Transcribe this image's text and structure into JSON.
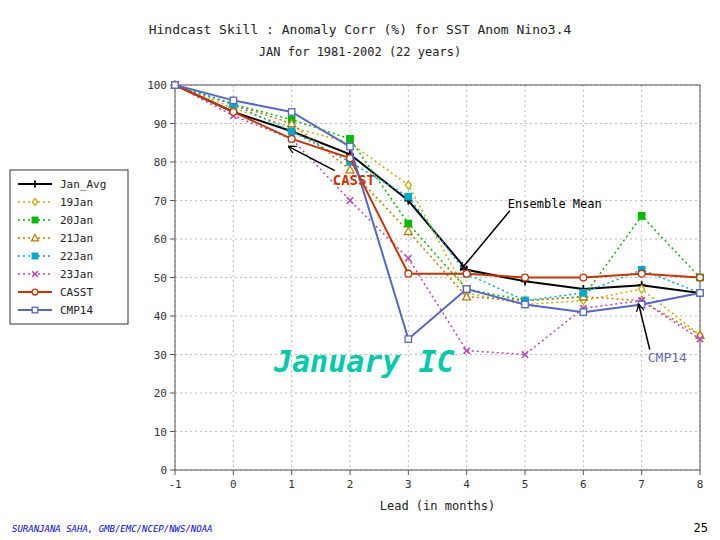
{
  "chart_data": {
    "type": "line",
    "title": "Hindcast Skill : Anomaly Corr (%) for SST Anom Nino3.4",
    "subtitle": "JAN for 1981-2002 (22 years)",
    "x_label": "Lead (in months)",
    "x": [
      -1,
      0,
      1,
      2,
      3,
      4,
      5,
      6,
      7,
      8
    ],
    "xlim": [
      -1,
      8
    ],
    "ylim": [
      0,
      100
    ],
    "xticks": [
      -1,
      0,
      1,
      2,
      3,
      4,
      5,
      6,
      7,
      8
    ],
    "yticks": [
      0,
      10,
      20,
      30,
      40,
      50,
      60,
      70,
      80,
      90,
      100
    ],
    "grid": true,
    "legend": "left",
    "series": [
      {
        "name": "Jan_Avg",
        "color": "black",
        "marker": "plus",
        "line_style": "solid",
        "values": [
          100,
          93,
          88,
          82,
          70,
          52,
          49,
          47,
          48,
          46
        ]
      },
      {
        "name": "19Jan",
        "color": "#ccaa00",
        "marker": "open-diamond",
        "line_style": "dotted",
        "values": [
          100,
          94,
          89,
          85,
          74,
          46,
          43,
          44,
          47,
          35
        ]
      },
      {
        "name": "20Jan",
        "color": "#00bb00",
        "marker": "square",
        "line_style": "dotted",
        "values": [
          100,
          95,
          91,
          86,
          64,
          47,
          44,
          45,
          66,
          50
        ]
      },
      {
        "name": "21Jan",
        "color": "#cc7700",
        "marker": "open-triangle",
        "line_style": "dotted",
        "values": [
          100,
          95,
          90,
          78,
          62,
          45,
          44,
          45,
          44,
          35
        ]
      },
      {
        "name": "22Jan",
        "color": "#00aacc",
        "marker": "square",
        "line_style": "dotted",
        "values": [
          100,
          95,
          88,
          80,
          71,
          51,
          44,
          46,
          52,
          46
        ]
      },
      {
        "name": "23Jan",
        "color": "#bb44bb",
        "marker": "x",
        "line_style": "dotted",
        "values": [
          100,
          92,
          86,
          70,
          55,
          31,
          30,
          42,
          44,
          34
        ]
      },
      {
        "name": "CASST",
        "color": "#cc3300",
        "marker": "open-circle",
        "line_style": "solid",
        "values": [
          100,
          93,
          86,
          81,
          51,
          51,
          50,
          50,
          51,
          50
        ]
      },
      {
        "name": "CMP14",
        "color": "#5566cc",
        "marker": "open-square",
        "line_style": "solid",
        "values": [
          100,
          96,
          93,
          84,
          34,
          47,
          43,
          41,
          43,
          46
        ]
      }
    ],
    "annotations": [
      {
        "text": "CASST",
        "x": 0.95,
        "y": 84,
        "color": "#cc3300"
      },
      {
        "text": "Ensemble Mean",
        "x": 3.9,
        "y": 52,
        "color": "black"
      },
      {
        "text": "CMP14",
        "x": 6.95,
        "y": 43,
        "color": "#6666bb"
      },
      {
        "text": "January IC",
        "color": "#00ccaa"
      }
    ],
    "footer": "SURANJANA SAHA, GMB/EMC/NCEP/NWS/NOAA",
    "page_number": "25"
  }
}
